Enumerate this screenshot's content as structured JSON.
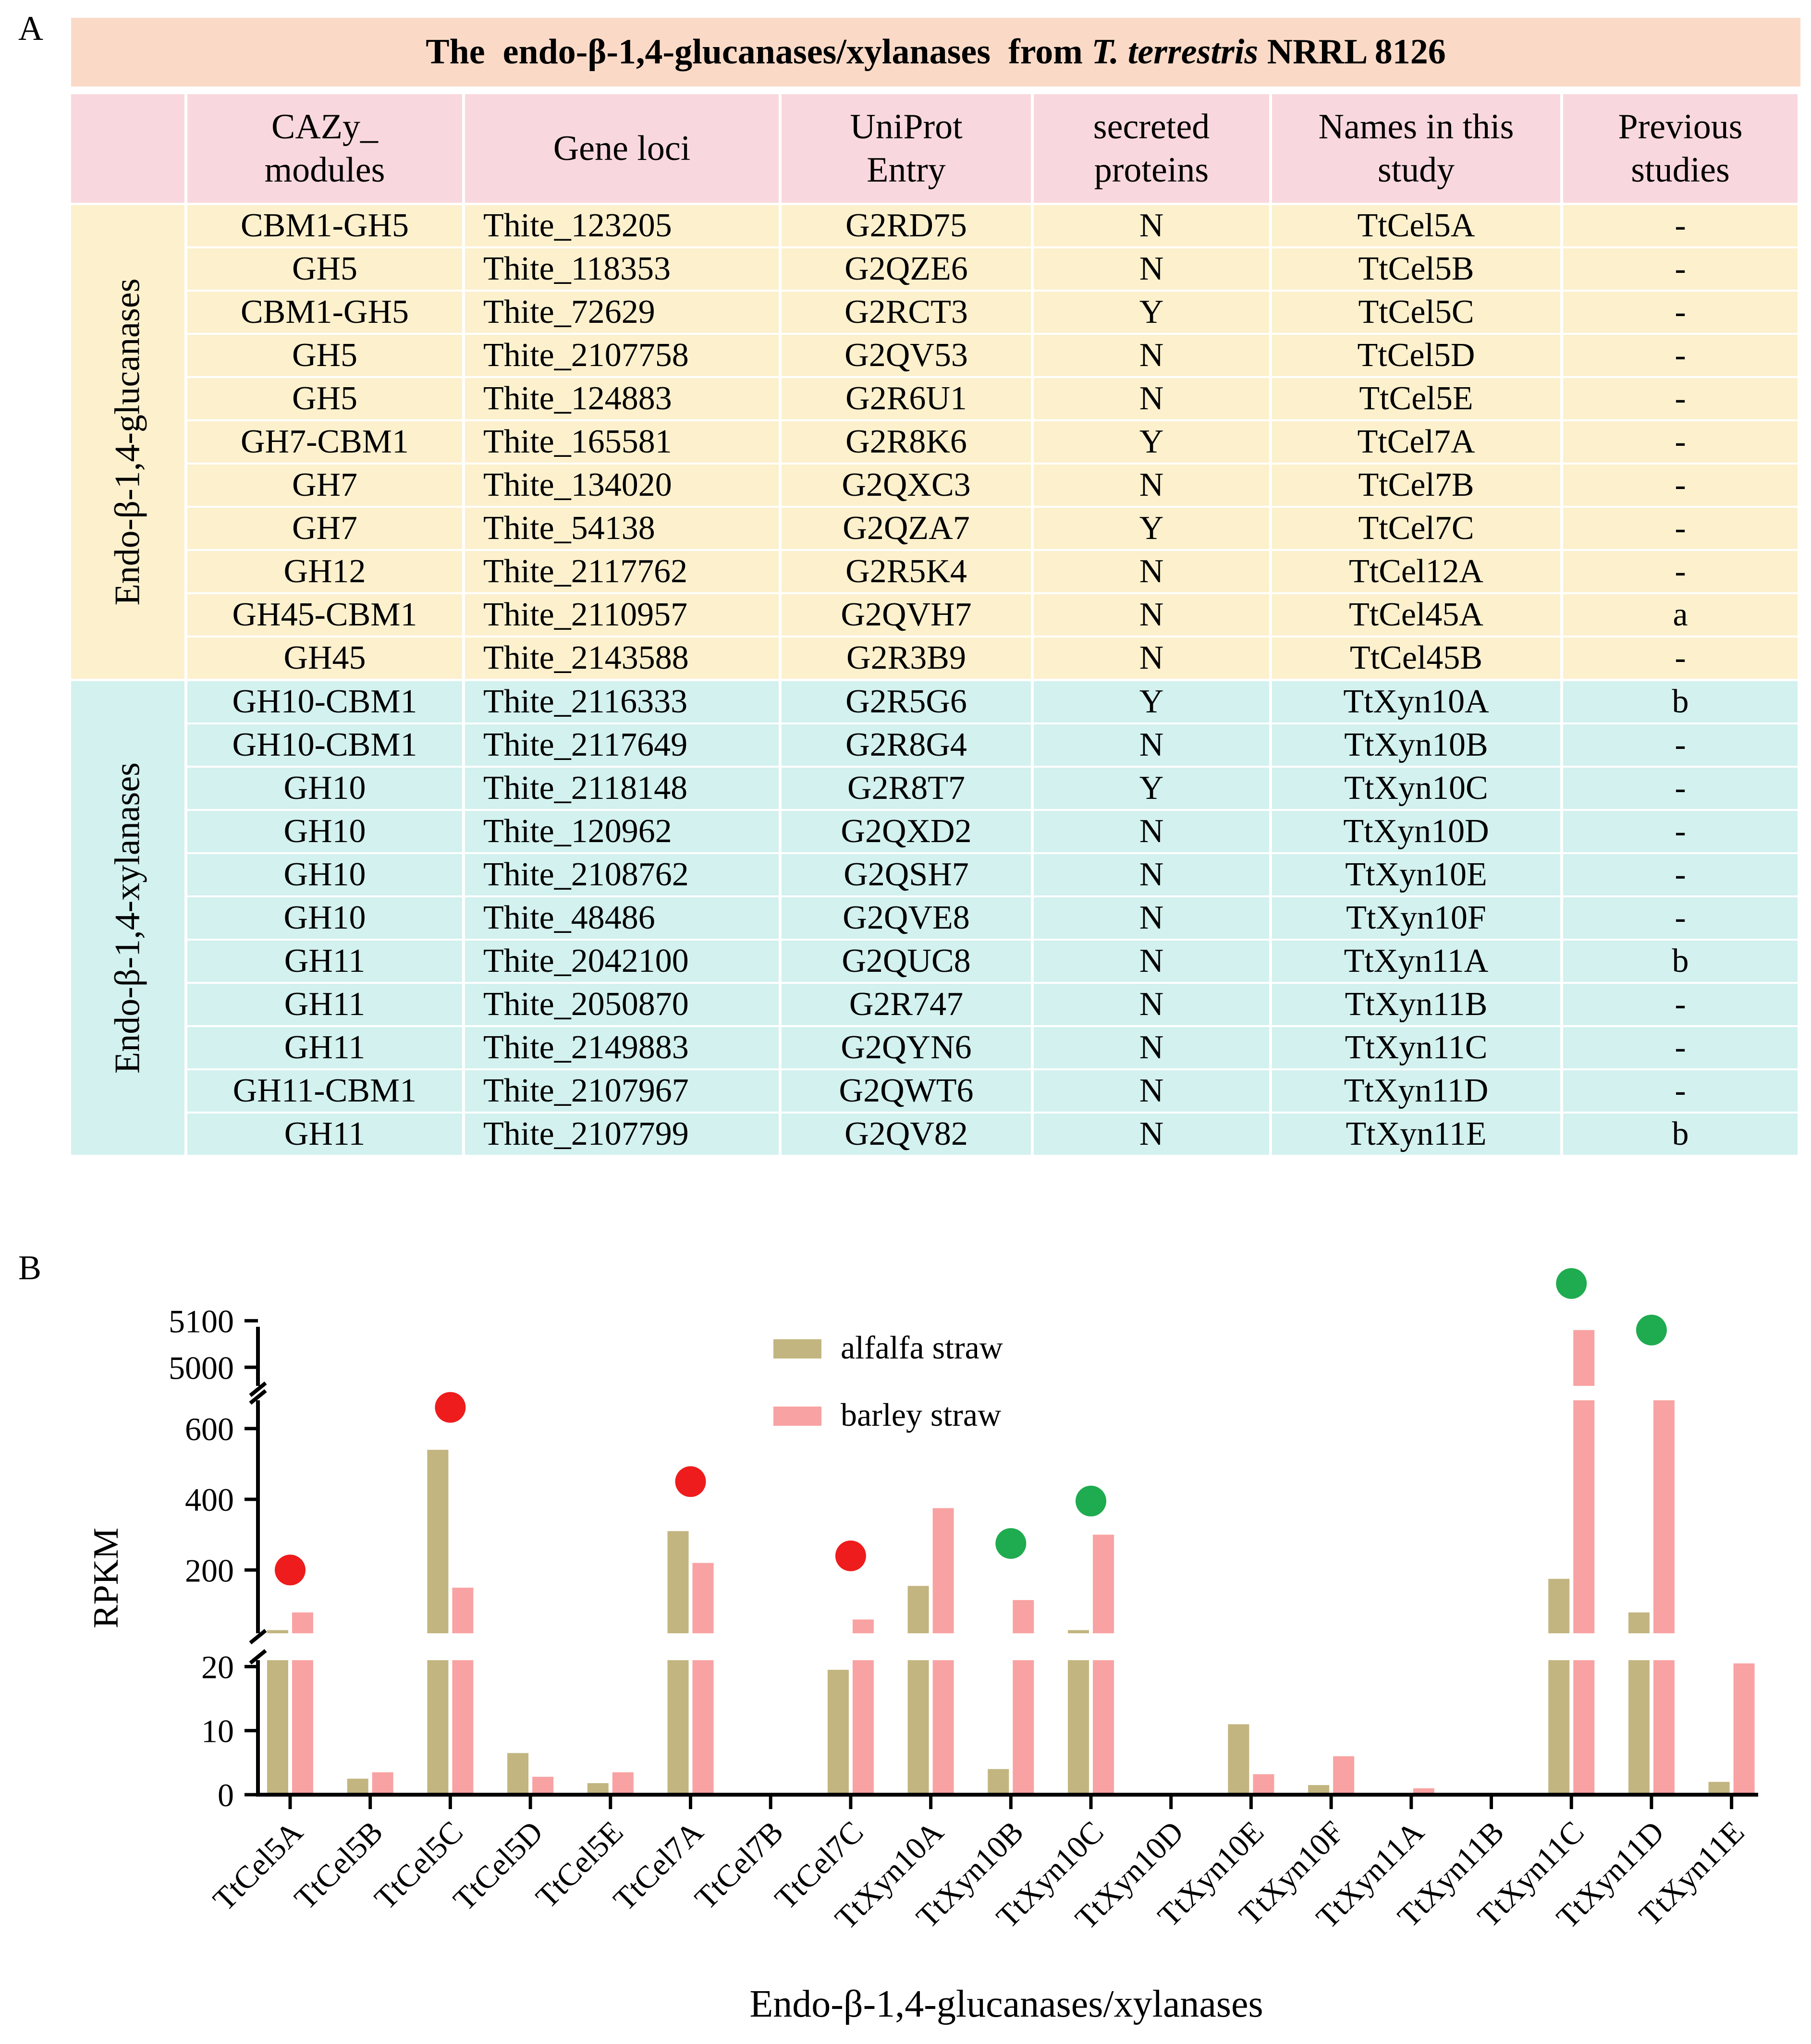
{
  "panel_a": {
    "letter": "A",
    "title_prefix": "The  endo-β-1,4-glucanases/xylanases  from ",
    "title_italic": "T. terrestris",
    "title_suffix": " NRRL 8126",
    "headers": [
      "CAZy_\nmodules",
      "Gene loci",
      "UniProt\nEntry",
      "secreted\nproteins",
      "Names in this\nstudy",
      "Previous\nstudies"
    ],
    "groups": [
      {
        "label": "Endo-β-1,4-glucanases",
        "rows": [
          [
            "CBM1-GH5",
            "Thite_123205",
            "G2RD75",
            "N",
            "TtCel5A",
            "-"
          ],
          [
            "GH5",
            "Thite_118353",
            "G2QZE6",
            "N",
            "TtCel5B",
            "-"
          ],
          [
            "CBM1-GH5",
            "Thite_72629",
            "G2RCT3",
            "Y",
            "TtCel5C",
            "-"
          ],
          [
            "GH5",
            "Thite_2107758",
            "G2QV53",
            "N",
            "TtCel5D",
            "-"
          ],
          [
            "GH5",
            "Thite_124883",
            "G2R6U1",
            "N",
            "TtCel5E",
            "-"
          ],
          [
            "GH7-CBM1",
            "Thite_165581",
            "G2R8K6",
            "Y",
            "TtCel7A",
            "-"
          ],
          [
            "GH7",
            "Thite_134020",
            "G2QXC3",
            "N",
            "TtCel7B",
            "-"
          ],
          [
            "GH7",
            "Thite_54138",
            "G2QZA7",
            "Y",
            "TtCel7C",
            "-"
          ],
          [
            "GH12",
            "Thite_2117762",
            "G2R5K4",
            "N",
            "TtCel12A",
            "-"
          ],
          [
            "GH45-CBM1",
            "Thite_2110957",
            "G2QVH7",
            "N",
            "TtCel45A",
            "a"
          ],
          [
            "GH45",
            "Thite_2143588",
            "G2R3B9",
            "N",
            "TtCel45B",
            "-"
          ]
        ]
      },
      {
        "label": "Endo-β-1,4-xylanases",
        "rows": [
          [
            "GH10-CBM1",
            "Thite_2116333",
            "G2R5G6",
            "Y",
            "TtXyn10A",
            "b"
          ],
          [
            "GH10-CBM1",
            "Thite_2117649",
            "G2R8G4",
            "N",
            "TtXyn10B",
            "-"
          ],
          [
            "GH10",
            "Thite_2118148",
            "G2R8T7",
            "Y",
            "TtXyn10C",
            "-"
          ],
          [
            "GH10",
            "Thite_120962",
            "G2QXD2",
            "N",
            "TtXyn10D",
            "-"
          ],
          [
            "GH10",
            "Thite_2108762",
            "G2QSH7",
            "N",
            "TtXyn10E",
            "-"
          ],
          [
            "GH10",
            "Thite_48486",
            "G2QVE8",
            "N",
            "TtXyn10F",
            "-"
          ],
          [
            "GH11",
            "Thite_2042100",
            "G2QUC8",
            "N",
            "TtXyn11A",
            "b"
          ],
          [
            "GH11",
            "Thite_2050870",
            "G2R747",
            "N",
            "TtXyn11B",
            "-"
          ],
          [
            "GH11",
            "Thite_2149883",
            "G2QYN6",
            "N",
            "TtXyn11C",
            "-"
          ],
          [
            "GH11-CBM1",
            "Thite_2107967",
            "G2QWT6",
            "N",
            "TtXyn11D",
            "-"
          ],
          [
            "GH11",
            "Thite_2107799",
            "G2QV82",
            "N",
            "TtXyn11E",
            "b"
          ]
        ]
      }
    ]
  },
  "panel_b": {
    "letter": "B"
  },
  "chart_data": {
    "type": "bar",
    "title": "",
    "xlabel": "Endo-β-1,4-glucanases/xylanases",
    "ylabel": "RPKM",
    "categories": [
      "TtCel5A",
      "TtCel5B",
      "TtCel5C",
      "TtCel5D",
      "TtCel5E",
      "TtCel7A",
      "TtCel7B",
      "TtCel7C",
      "TtXyn10A",
      "TtXyn10B",
      "TtXyn10C",
      "TtXyn10D",
      "TtXyn10E",
      "TtXyn10F",
      "TtXyn11A",
      "TtXyn11B",
      "TtXyn11C",
      "TtXyn11D",
      "TtXyn11E"
    ],
    "series": [
      {
        "name": "alfalfa straw",
        "color": "#c2b57f",
        "values": [
          30,
          2.5,
          540,
          6.5,
          1.8,
          310,
          0.3,
          19.5,
          155,
          4,
          30,
          0,
          11,
          1.5,
          0,
          0,
          175,
          80,
          2
        ]
      },
      {
        "name": "barley straw",
        "color": "#f9a2a3",
        "values": [
          80,
          3.5,
          150,
          2.8,
          3.5,
          220,
          0,
          60,
          375,
          115,
          300,
          0,
          3.2,
          6,
          1,
          0,
          5080,
          680,
          20.5
        ]
      }
    ],
    "y_axis_segments": [
      {
        "range": [
          0,
          21
        ],
        "ticks": [
          0,
          10,
          20
        ]
      },
      {
        "range": [
          21,
          680
        ],
        "ticks": [
          200,
          400,
          600
        ]
      },
      {
        "range": [
          4960,
          5120
        ],
        "ticks": [
          5000,
          5100
        ]
      }
    ],
    "markers": [
      {
        "category": "TtCel5A",
        "color": "#ee1c1c",
        "value": 200
      },
      {
        "category": "TtCel5C",
        "color": "#ee1c1c",
        "value": 660
      },
      {
        "category": "TtCel7A",
        "color": "#ee1c1c",
        "value": 450
      },
      {
        "category": "TtCel7C",
        "color": "#ee1c1c",
        "value": 240
      },
      {
        "category": "TtXyn10B",
        "color": "#1fab4f",
        "value": 275
      },
      {
        "category": "TtXyn10C",
        "color": "#1fab4f",
        "value": 395
      },
      {
        "category": "TtXyn11C",
        "color": "#1fab4f",
        "value": 5180
      },
      {
        "category": "TtXyn11D",
        "color": "#1fab4f",
        "value": 5080
      }
    ],
    "legend_position": "top-center"
  }
}
